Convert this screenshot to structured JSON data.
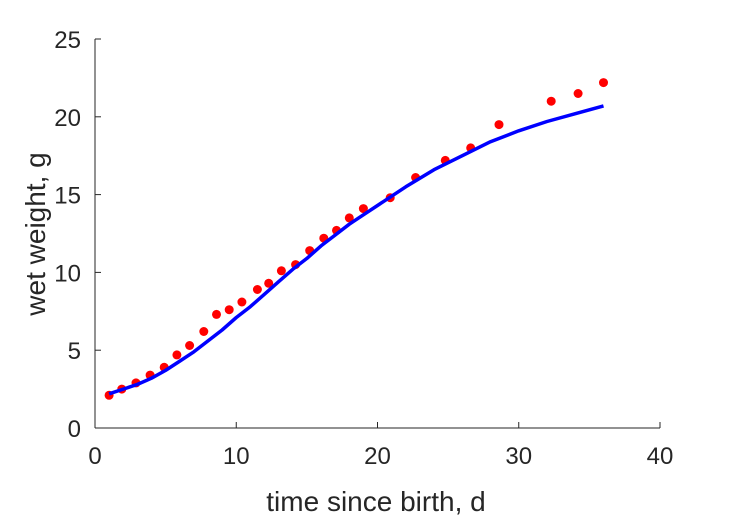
{
  "chart_data": {
    "type": "scatter",
    "xlabel": "time since birth, d",
    "ylabel": "wet weight, g",
    "xlim": [
      0,
      40
    ],
    "ylim": [
      0,
      25
    ],
    "xticks": [
      "0",
      "10",
      "20",
      "30",
      "40"
    ],
    "yticks": [
      "0",
      "5",
      "10",
      "15",
      "20",
      "25"
    ],
    "grid": false,
    "legend": "none",
    "series": [
      {
        "kind": "points",
        "color": "#ff0000",
        "points": [
          [
            1.0,
            2.1
          ],
          [
            1.9,
            2.5
          ],
          [
            2.9,
            2.9
          ],
          [
            3.9,
            3.4
          ],
          [
            4.9,
            3.9
          ],
          [
            5.8,
            4.7
          ],
          [
            6.7,
            5.3
          ],
          [
            7.7,
            6.2
          ],
          [
            8.6,
            7.3
          ],
          [
            9.5,
            7.6
          ],
          [
            10.4,
            8.1
          ],
          [
            11.5,
            8.9
          ],
          [
            12.3,
            9.3
          ],
          [
            13.2,
            10.1
          ],
          [
            14.2,
            10.5
          ],
          [
            15.2,
            11.4
          ],
          [
            16.2,
            12.2
          ],
          [
            17.1,
            12.7
          ],
          [
            18.0,
            13.5
          ],
          [
            19.0,
            14.1
          ],
          [
            20.9,
            14.8
          ],
          [
            22.7,
            16.1
          ],
          [
            24.8,
            17.2
          ],
          [
            26.6,
            18.0
          ],
          [
            28.6,
            19.5
          ],
          [
            32.3,
            21.0
          ],
          [
            34.2,
            21.5
          ],
          [
            36.0,
            22.2
          ]
        ]
      },
      {
        "kind": "line",
        "color": "#0000ff",
        "points": [
          [
            1.0,
            2.2
          ],
          [
            2.0,
            2.5
          ],
          [
            3.0,
            2.8
          ],
          [
            4.0,
            3.2
          ],
          [
            5.0,
            3.7
          ],
          [
            6.0,
            4.3
          ],
          [
            7.0,
            4.9
          ],
          [
            8.0,
            5.6
          ],
          [
            9.0,
            6.3
          ],
          [
            10.0,
            7.1
          ],
          [
            11.0,
            7.8
          ],
          [
            12.0,
            8.6
          ],
          [
            13.0,
            9.4
          ],
          [
            14.0,
            10.2
          ],
          [
            15.0,
            10.9
          ],
          [
            16.0,
            11.7
          ],
          [
            17.0,
            12.4
          ],
          [
            18.0,
            13.1
          ],
          [
            19.0,
            13.7
          ],
          [
            20.0,
            14.3
          ],
          [
            22.0,
            15.5
          ],
          [
            24.0,
            16.6
          ],
          [
            26.0,
            17.5
          ],
          [
            28.0,
            18.4
          ],
          [
            30.0,
            19.1
          ],
          [
            32.0,
            19.7
          ],
          [
            34.0,
            20.2
          ],
          [
            36.0,
            20.7
          ]
        ]
      }
    ]
  }
}
